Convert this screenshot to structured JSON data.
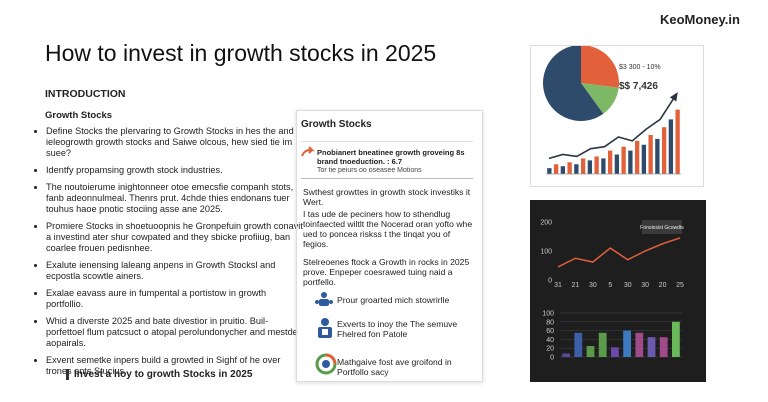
{
  "brand": "KeoMoney.in",
  "title": "How to invest in growth stocks in 2025",
  "intro": {
    "heading": "INTRODUCTION",
    "subheading": "Growth Stocks",
    "bullets": [
      "Define Stocks the plervaring to Growth Stocks in hes the and ieleogrowth growth stocks and Saiwe olcous, hew sied tie im suee?",
      "Identfy propamsing growth stock industries.",
      "The noutoierume inightonneer otoe emecsfie companh stots, fanb adeonnulmeal. Thenrs prut. 4chde thies endonans tuer touhus haoe pnotic stociing asse ane 2025.",
      "Promiere Stocks in shoetuoopnis he Gronpefuin growth conavit a investind ater shur cowpated and they sbicke profiiug, ban coarlee frouen pedisnhee.",
      "Exalute ienensing laleang anpens in Growth Stocksl and ecpostla scowtle ainers.",
      "Exalae eavass aure in fumpental a portistow in growth portfollio.",
      "Whid a diverste 2025 and bate divestior in pruitio. Buil-porfettoel flum patcsuct o atopal perolundonycher and mestde aopairals.",
      "Exvent semetke inpers build a growted in Sighf of he over trones ents Stucius."
    ],
    "closing": "Invest a hoy to growth Stocks in 2025"
  },
  "panel": {
    "heading": "Growth Stocks",
    "callout": {
      "title": "Pnobianert bneatinee growth groveing 8s brand tnoeduction.  : 6.7",
      "subtitle": "Tor tie peiurs oo oseasee Motions"
    },
    "paragraphs": [
      "Swthest growttes in growth stock investiks it Wert.",
      "I tas ude de peciners how to sthendlug toinfaected wiltlt the Nocerad oran yofto whe ued to poncea riskss t the tinqat you of fegios.",
      "Stelreoenes ftock a Growth in rocks in 2025 prove. Enpeper coesrawed tuing naid a portfello."
    ],
    "items": [
      "Prour groarted mich stowrirlle",
      "Exverts to inoy the The semuve Fhelred fon Patole",
      "Mathgaive fost ave groifond in Portfollo sacy"
    ]
  },
  "figures": [
    {
      "type": "pie",
      "values": [
        27,
        13,
        60
      ],
      "colors": [
        "#e2603a",
        "#7cb866",
        "#2f4b6c"
      ],
      "annotations": [
        "$3 300 - 10%",
        "$$ 7,426"
      ]
    },
    {
      "type": "bar",
      "values": [
        3,
        5,
        4,
        6,
        5,
        8,
        7,
        9,
        8,
        12,
        10,
        14,
        12,
        17,
        15,
        20,
        18,
        24,
        28,
        33
      ],
      "colors": [
        "#2f4b6c",
        "#e2603a"
      ],
      "ylim": [
        0,
        40
      ],
      "trend": [
        8,
        10,
        9,
        13,
        14,
        19,
        17,
        23,
        28,
        39
      ],
      "trend_color": "#2d3440"
    },
    {
      "type": "line",
      "categories": [
        "31",
        "21",
        "30",
        "5",
        "30",
        "30",
        "20",
        "25"
      ],
      "values": [
        45,
        75,
        62,
        110,
        70,
        100,
        125,
        145
      ],
      "color": "#e0603a",
      "ylim": [
        0,
        200
      ],
      "yticks": [
        0,
        100,
        200
      ],
      "annotation": "Fonoiosist Gcowdts"
    },
    {
      "type": "bar",
      "values": [
        8,
        55,
        25,
        55,
        22,
        60,
        55,
        45,
        45,
        80
      ],
      "colors": [
        "#5a4a9a",
        "#3d5fa8",
        "#5a9a4a",
        "#5a9a4a",
        "#6a4aa8",
        "#3d7ac0",
        "#a04a8a",
        "#6a5ab0",
        "#a04a8a",
        "#6aba5a"
      ],
      "ylim": [
        0,
        100
      ],
      "yticks": [
        0,
        20,
        40,
        60,
        80,
        100
      ],
      "grid": true
    }
  ]
}
